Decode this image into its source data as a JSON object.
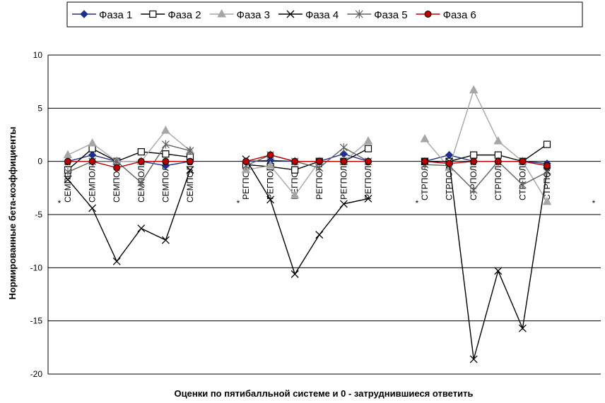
{
  "chart_data": {
    "type": "line",
    "title": "",
    "xlabel": "Оценки по пятибалльной системе и 0 - затруднившиеся ответить",
    "ylabel": "Нормированные бета-коэффициенты",
    "ylim": [
      -20,
      10
    ],
    "yticks": [
      10,
      5,
      0,
      -5,
      -10,
      -15,
      -20
    ],
    "grid": true,
    "legend_position": "top",
    "groups": [
      {
        "categories": [
          "СЕМПОЛ5",
          "СЕМПОЛ4",
          "СЕМПОЛ3",
          "СЕМПОЛ2",
          "СЕМПОЛ1",
          "СЕМПОЛ0"
        ]
      },
      {
        "categories": [
          "РЕГПОЛ5",
          "РЕГПОЛ4",
          "РЕГПОЛ3",
          "РЕГПОЛ2",
          "РЕГПОЛ1",
          "РЕГПОЛ0"
        ]
      },
      {
        "categories": [
          "СТРПОЛ5",
          "СТРПОЛ4",
          "СТРПОЛ3",
          "СТРПОЛ2",
          "СТРПОЛ1",
          "СТРПОЛ0"
        ]
      }
    ],
    "separator_label": "*",
    "series": [
      {
        "name": "Фаза 1",
        "color": "#1f2f8f",
        "marker": "diamond",
        "values": [
          [
            0,
            0.6,
            0,
            0,
            -0.4,
            0
          ],
          [
            0,
            0.1,
            0,
            0,
            0.7,
            0
          ],
          [
            0,
            0.6,
            0,
            0,
            0,
            -0.2
          ]
        ]
      },
      {
        "name": "Фаза 2",
        "color": "#000000",
        "marker": "square",
        "values": [
          [
            -0.8,
            1.2,
            0,
            0.9,
            0.7,
            0.4
          ],
          [
            -0.3,
            -0.5,
            -0.8,
            0,
            0,
            1.2
          ],
          [
            0,
            0,
            0.6,
            0.6,
            0,
            1.6
          ]
        ]
      },
      {
        "name": "Фаза 3",
        "color": "#a6a6a6",
        "marker": "triangle",
        "values": [
          [
            0.6,
            1.7,
            0,
            0,
            2.9,
            1.0
          ],
          [
            -0.8,
            -0.4,
            -3.2,
            0,
            0,
            1.9
          ],
          [
            2.1,
            -0.6,
            6.7,
            1.9,
            0,
            -3.8
          ]
        ]
      },
      {
        "name": "Фаза 4",
        "color": "#000000",
        "marker": "x",
        "values": [
          [
            -1.7,
            -4.4,
            -9.4,
            -6.3,
            -7.4,
            -0.8
          ],
          [
            0.2,
            -3.6,
            -10.6,
            -6.9,
            -4.0,
            -3.5
          ],
          [
            0,
            0,
            -18.6,
            -10.3,
            -15.7,
            -0.9
          ]
        ]
      },
      {
        "name": "Фаза 5",
        "color": "#606060",
        "marker": "star",
        "values": [
          [
            -1.0,
            0,
            0,
            -2.0,
            1.6,
            1.0
          ],
          [
            -0.4,
            0.6,
            0,
            -0.6,
            1.3,
            0
          ],
          [
            -0.3,
            -0.4,
            -2.7,
            0,
            -2.2,
            -1.0
          ]
        ]
      },
      {
        "name": "Фаза 6",
        "color": "#c00000",
        "marker": "circle",
        "values": [
          [
            0,
            0,
            -0.6,
            0,
            0,
            0
          ],
          [
            0,
            0.6,
            0,
            0,
            0,
            0
          ],
          [
            0,
            -0.2,
            0,
            0,
            0,
            -0.4
          ]
        ]
      }
    ]
  }
}
